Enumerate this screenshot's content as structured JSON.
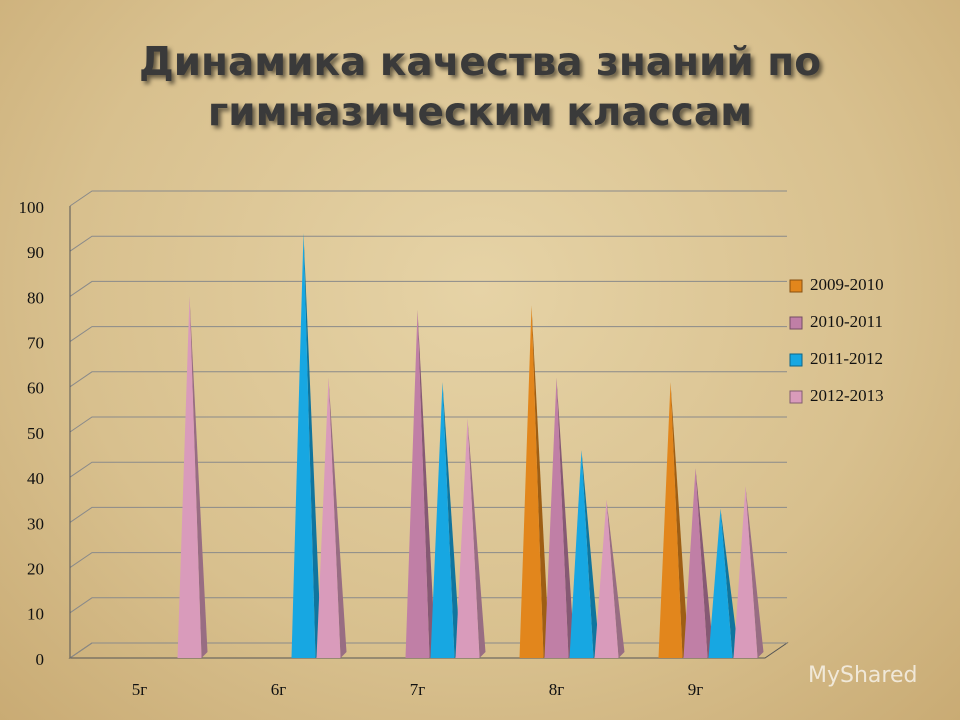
{
  "chart_data": {
    "type": "bar",
    "title": "Динамика качества знаний по гимназическим классам",
    "categories": [
      "5г",
      "6г",
      "7г",
      "8г",
      "9г"
    ],
    "series": [
      {
        "name": "2009-2010",
        "color": "#e2861c",
        "values": [
          null,
          null,
          null,
          78,
          61
        ]
      },
      {
        "name": "2010-2011",
        "color": "#c07fa6",
        "values": [
          null,
          null,
          77,
          62,
          42
        ]
      },
      {
        "name": "2011-2012",
        "color": "#17a7e2",
        "values": [
          null,
          94,
          61,
          46,
          33
        ]
      },
      {
        "name": "2012-2013",
        "color": "#d99bbb",
        "values": [
          80,
          62,
          53,
          35,
          38
        ]
      }
    ],
    "ylim": [
      0,
      100
    ],
    "yticks": [
      0,
      10,
      20,
      30,
      40,
      50,
      60,
      70,
      80,
      90,
      100
    ],
    "grid": true,
    "legend": "right",
    "watermark": "MyShared"
  }
}
